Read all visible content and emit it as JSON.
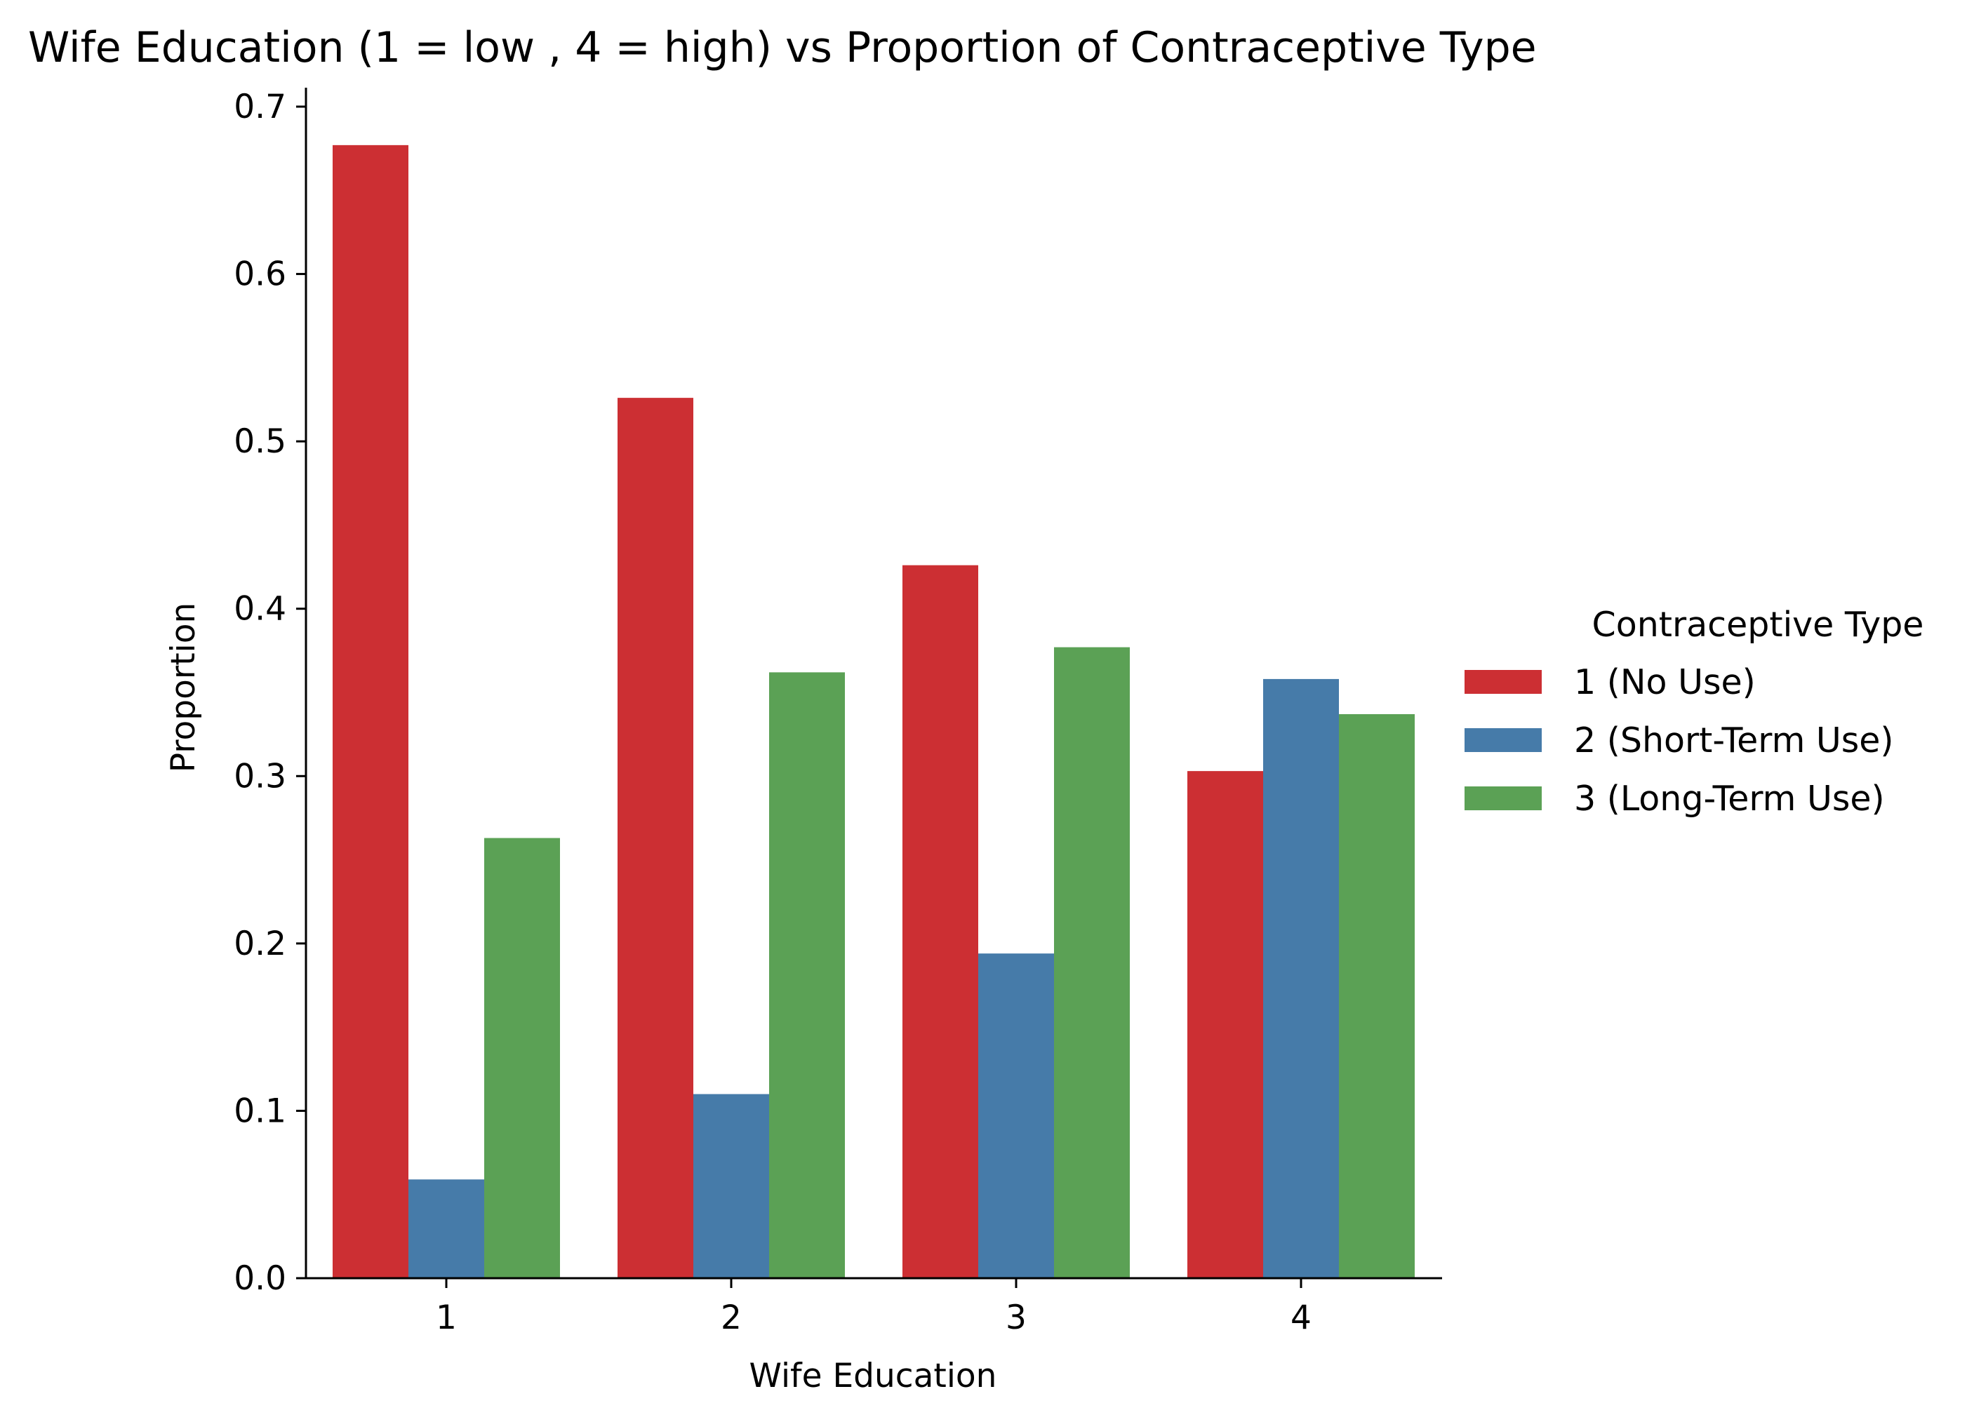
{
  "chart_data": {
    "type": "bar",
    "title": "Wife Education (1 = low , 4 = high) vs Proportion of Contraceptive Type",
    "xlabel": "Wife Education",
    "ylabel": "Proportion",
    "categories": [
      "1",
      "2",
      "3",
      "4"
    ],
    "series": [
      {
        "name": "1 (No Use)",
        "color": "#cc2f33",
        "values": [
          0.677,
          0.526,
          0.426,
          0.303
        ]
      },
      {
        "name": "2 (Short-Term Use)",
        "color": "#467ba9",
        "values": [
          0.059,
          0.11,
          0.194,
          0.358
        ]
      },
      {
        "name": "3 (Long-Term Use)",
        "color": "#5ba155",
        "values": [
          0.263,
          0.362,
          0.377,
          0.337
        ]
      }
    ],
    "ylim": [
      0,
      0.7
    ],
    "yticks": [
      "0.0",
      "0.1",
      "0.2",
      "0.3",
      "0.4",
      "0.5",
      "0.6",
      "0.7"
    ],
    "grid": false,
    "legend": {
      "title": "Contraceptive Type",
      "placement": "right"
    }
  }
}
